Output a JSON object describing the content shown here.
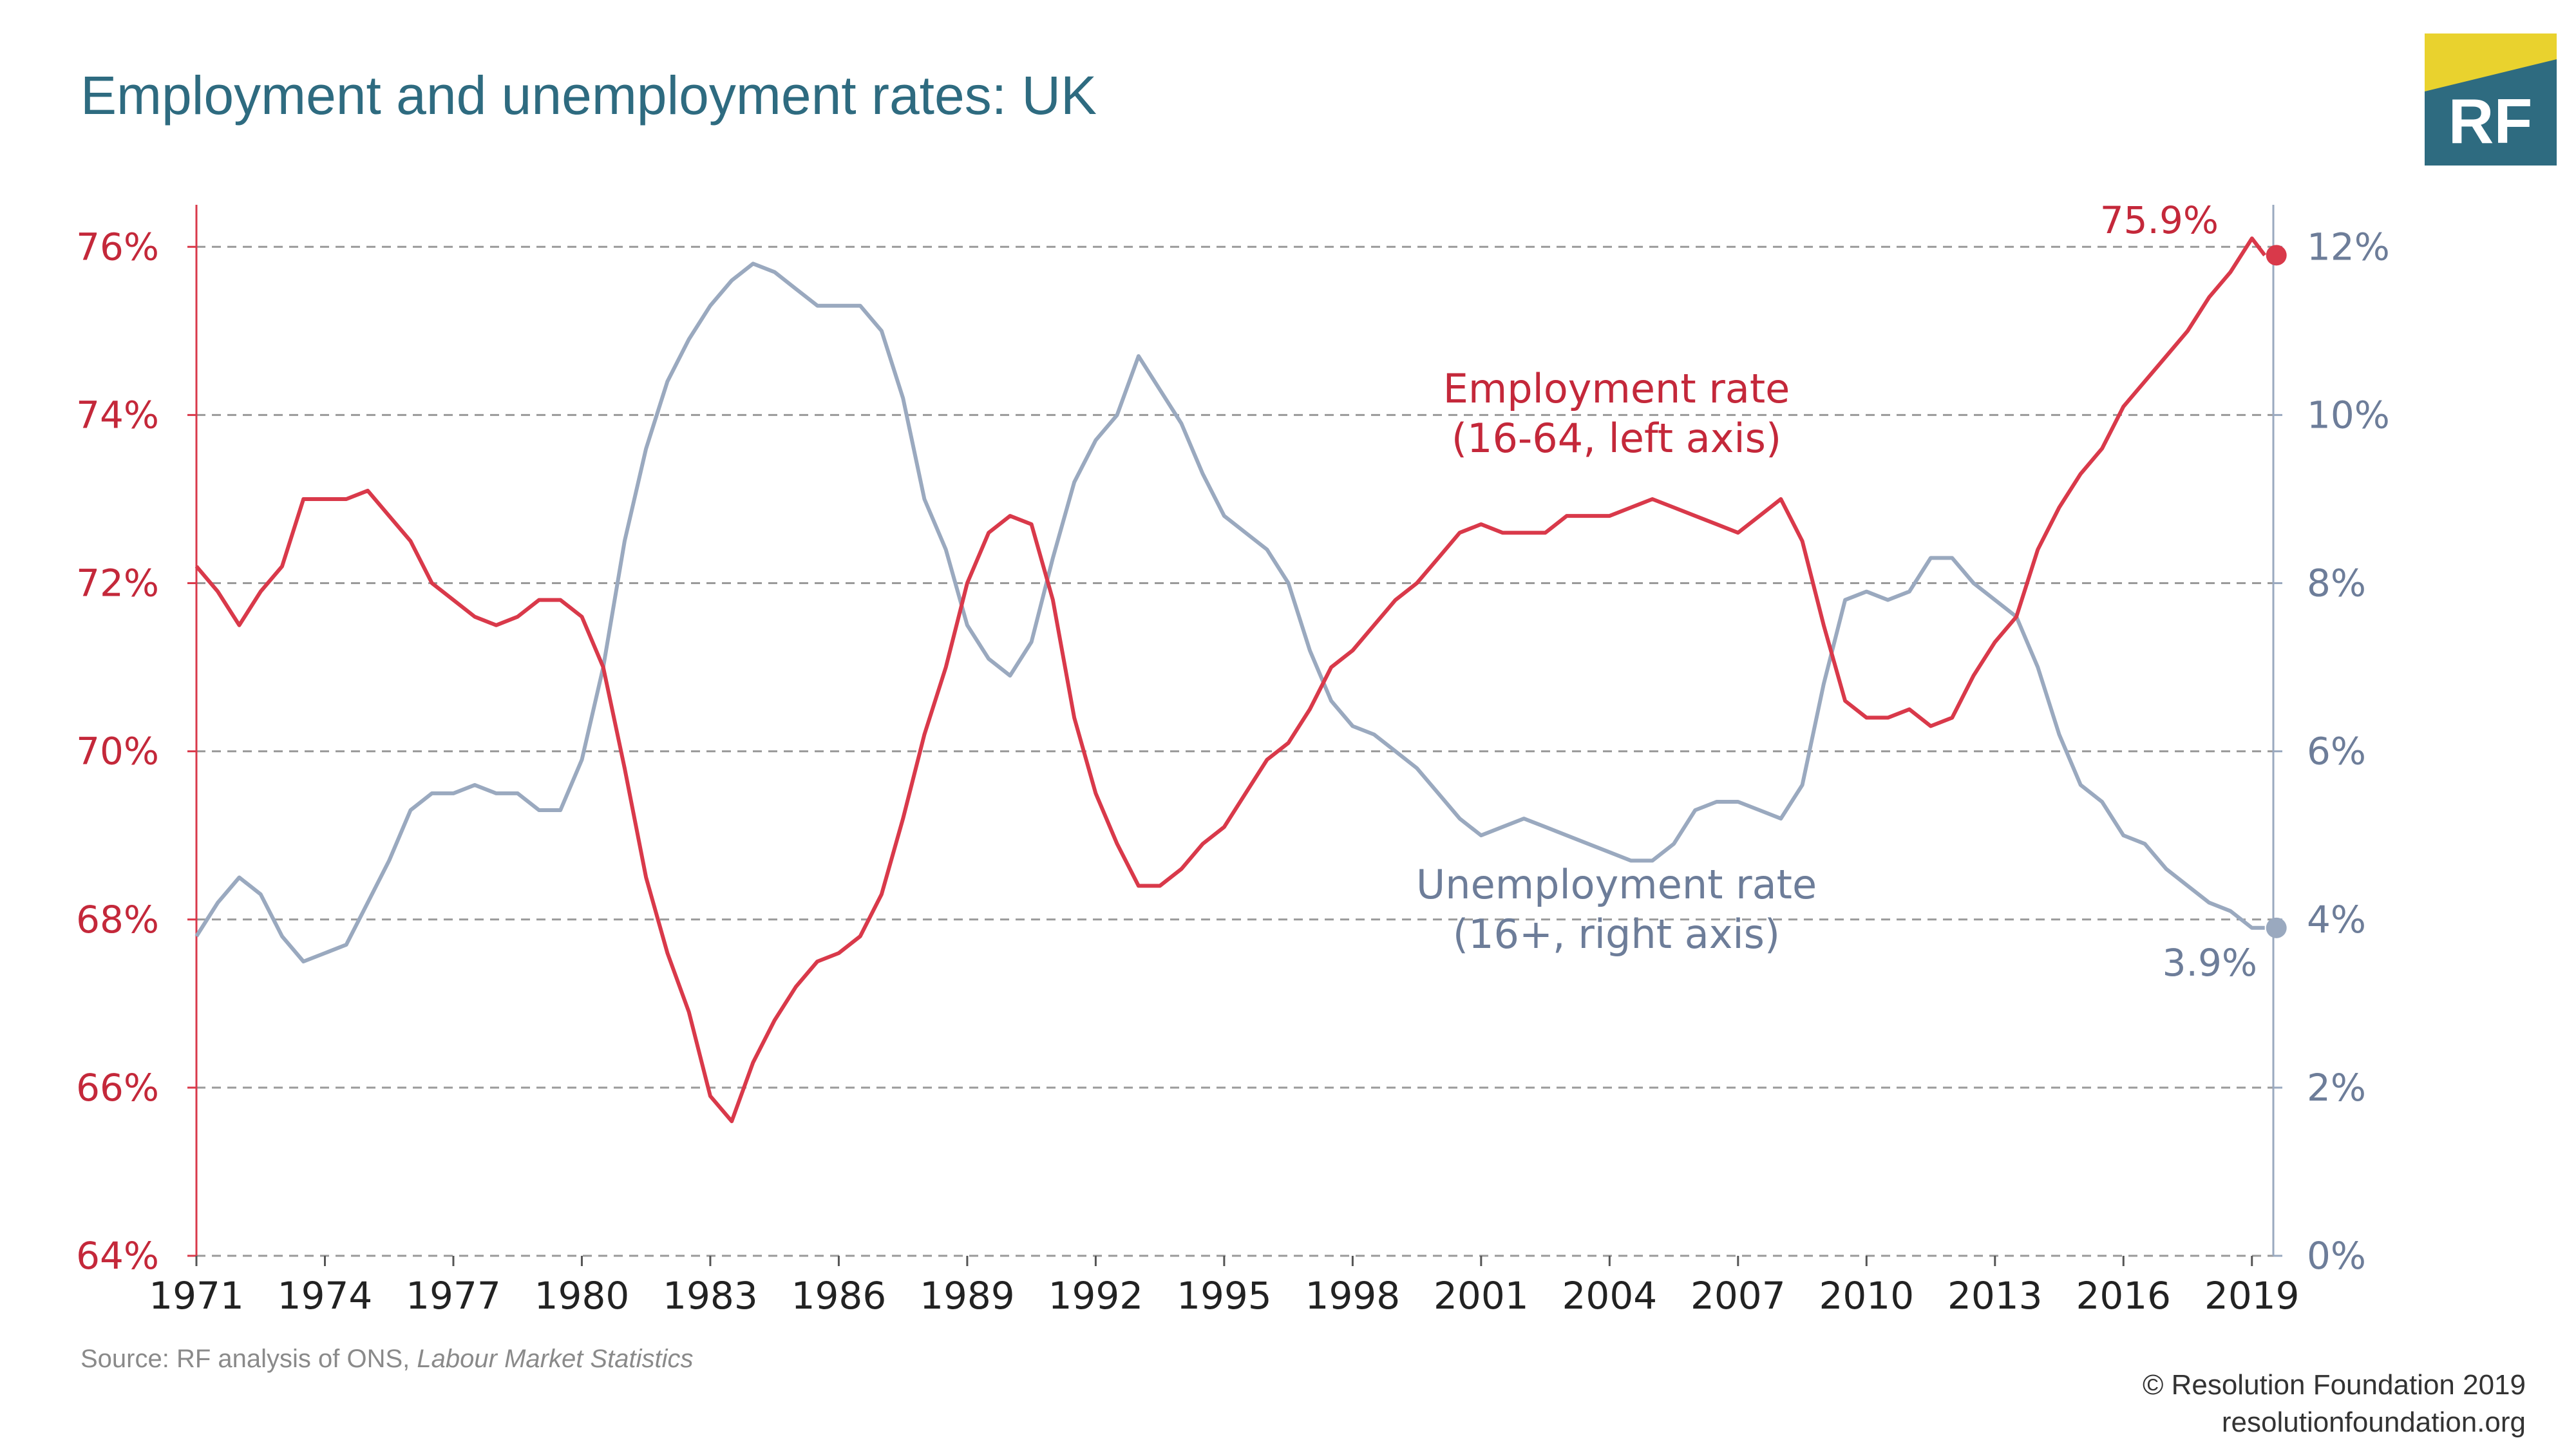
{
  "title": "Employment and unemployment rates: UK",
  "logo": {
    "text": "RF",
    "colors": {
      "teal": "#2e6b80",
      "yellow": "#e9d22e"
    }
  },
  "source": {
    "prefix": "Source: RF analysis of ONS, ",
    "dataset": "Labour Market Statistics"
  },
  "credit": {
    "line1": "© Resolution Foundation 2019",
    "line2": "resolutionfoundation.org"
  },
  "colors": {
    "employment": "#d9394a",
    "unemployment": "#9aa9bf",
    "left_axis_text": "#c4283a",
    "right_axis_text": "#6d7d99",
    "grid": "#9a9a9a",
    "axis_text": "#222222"
  },
  "chart_data": {
    "type": "line",
    "x_range": [
      1971,
      2019.5
    ],
    "x_ticks": [
      "1971",
      "1974",
      "1977",
      "1980",
      "1983",
      "1986",
      "1989",
      "1992",
      "1995",
      "1998",
      "2001",
      "2004",
      "2007",
      "2010",
      "2013",
      "2016",
      "2019"
    ],
    "left_axis": {
      "range": [
        64,
        76.5
      ],
      "ticks": [
        "64%",
        "66%",
        "68%",
        "70%",
        "72%",
        "74%",
        "76%"
      ],
      "tick_values": [
        64,
        66,
        68,
        70,
        72,
        74,
        76
      ]
    },
    "right_axis": {
      "range": [
        0,
        12.5
      ],
      "ticks": [
        "0%",
        "2%",
        "4%",
        "6%",
        "8%",
        "10%",
        "12%"
      ],
      "tick_values": [
        0,
        2,
        4,
        6,
        8,
        10,
        12
      ]
    },
    "grid": true,
    "series": [
      {
        "label_line1": "Employment rate",
        "label_line2": "(16-64, left axis)",
        "axis": "left",
        "end_label": "75.9%",
        "end_value": 75.9,
        "points": [
          [
            1971,
            72.2
          ],
          [
            1971.5,
            71.9
          ],
          [
            1972,
            71.5
          ],
          [
            1972.5,
            71.9
          ],
          [
            1973,
            72.2
          ],
          [
            1973.5,
            73.0
          ],
          [
            1974,
            73.0
          ],
          [
            1974.5,
            73.0
          ],
          [
            1975,
            73.1
          ],
          [
            1975.5,
            72.8
          ],
          [
            1976,
            72.5
          ],
          [
            1976.5,
            72.0
          ],
          [
            1977,
            71.8
          ],
          [
            1977.5,
            71.6
          ],
          [
            1978,
            71.5
          ],
          [
            1978.5,
            71.6
          ],
          [
            1979,
            71.8
          ],
          [
            1979.5,
            71.8
          ],
          [
            1980,
            71.6
          ],
          [
            1980.5,
            71.0
          ],
          [
            1981,
            69.8
          ],
          [
            1981.5,
            68.5
          ],
          [
            1982,
            67.6
          ],
          [
            1982.5,
            66.9
          ],
          [
            1983,
            65.9
          ],
          [
            1983.5,
            65.6
          ],
          [
            1984,
            66.3
          ],
          [
            1984.5,
            66.8
          ],
          [
            1985,
            67.2
          ],
          [
            1985.5,
            67.5
          ],
          [
            1986,
            67.6
          ],
          [
            1986.5,
            67.8
          ],
          [
            1987,
            68.3
          ],
          [
            1987.5,
            69.2
          ],
          [
            1988,
            70.2
          ],
          [
            1988.5,
            71.0
          ],
          [
            1989,
            72.0
          ],
          [
            1989.5,
            72.6
          ],
          [
            1990,
            72.8
          ],
          [
            1990.5,
            72.7
          ],
          [
            1991,
            71.8
          ],
          [
            1991.5,
            70.4
          ],
          [
            1992,
            69.5
          ],
          [
            1992.5,
            68.9
          ],
          [
            1993,
            68.4
          ],
          [
            1993.5,
            68.4
          ],
          [
            1994,
            68.6
          ],
          [
            1994.5,
            68.9
          ],
          [
            1995,
            69.1
          ],
          [
            1995.5,
            69.5
          ],
          [
            1996,
            69.9
          ],
          [
            1996.5,
            70.1
          ],
          [
            1997,
            70.5
          ],
          [
            1997.5,
            71.0
          ],
          [
            1998,
            71.2
          ],
          [
            1998.5,
            71.5
          ],
          [
            1999,
            71.8
          ],
          [
            1999.5,
            72.0
          ],
          [
            2000,
            72.3
          ],
          [
            2000.5,
            72.6
          ],
          [
            2001,
            72.7
          ],
          [
            2001.5,
            72.6
          ],
          [
            2002,
            72.6
          ],
          [
            2002.5,
            72.6
          ],
          [
            2003,
            72.8
          ],
          [
            2003.5,
            72.8
          ],
          [
            2004,
            72.8
          ],
          [
            2004.5,
            72.9
          ],
          [
            2005,
            73.0
          ],
          [
            2005.5,
            72.9
          ],
          [
            2006,
            72.8
          ],
          [
            2006.5,
            72.7
          ],
          [
            2007,
            72.6
          ],
          [
            2007.5,
            72.8
          ],
          [
            2008,
            73.0
          ],
          [
            2008.5,
            72.5
          ],
          [
            2009,
            71.5
          ],
          [
            2009.5,
            70.6
          ],
          [
            2010,
            70.4
          ],
          [
            2010.5,
            70.4
          ],
          [
            2011,
            70.5
          ],
          [
            2011.5,
            70.3
          ],
          [
            2012,
            70.4
          ],
          [
            2012.5,
            70.9
          ],
          [
            2013,
            71.3
          ],
          [
            2013.5,
            71.6
          ],
          [
            2014,
            72.4
          ],
          [
            2014.5,
            72.9
          ],
          [
            2015,
            73.3
          ],
          [
            2015.5,
            73.6
          ],
          [
            2016,
            74.1
          ],
          [
            2016.5,
            74.4
          ],
          [
            2017,
            74.7
          ],
          [
            2017.5,
            75.0
          ],
          [
            2018,
            75.4
          ],
          [
            2018.5,
            75.7
          ],
          [
            2019,
            76.1
          ],
          [
            2019.3,
            75.9
          ]
        ]
      },
      {
        "label_line1": "Unemployment rate",
        "label_line2": "(16+, right axis)",
        "axis": "right",
        "end_label": "3.9%",
        "end_value": 3.9,
        "points": [
          [
            1971,
            3.8
          ],
          [
            1971.5,
            4.2
          ],
          [
            1972,
            4.5
          ],
          [
            1972.5,
            4.3
          ],
          [
            1973,
            3.8
          ],
          [
            1973.5,
            3.5
          ],
          [
            1974,
            3.6
          ],
          [
            1974.5,
            3.7
          ],
          [
            1975,
            4.2
          ],
          [
            1975.5,
            4.7
          ],
          [
            1976,
            5.3
          ],
          [
            1976.5,
            5.5
          ],
          [
            1977,
            5.5
          ],
          [
            1977.5,
            5.6
          ],
          [
            1978,
            5.5
          ],
          [
            1978.5,
            5.5
          ],
          [
            1979,
            5.3
          ],
          [
            1979.5,
            5.3
          ],
          [
            1980,
            5.9
          ],
          [
            1980.5,
            7.0
          ],
          [
            1981,
            8.5
          ],
          [
            1981.5,
            9.6
          ],
          [
            1982,
            10.4
          ],
          [
            1982.5,
            10.9
          ],
          [
            1983,
            11.3
          ],
          [
            1983.5,
            11.6
          ],
          [
            1984,
            11.8
          ],
          [
            1984.5,
            11.7
          ],
          [
            1985,
            11.5
          ],
          [
            1985.5,
            11.3
          ],
          [
            1986,
            11.3
          ],
          [
            1986.5,
            11.3
          ],
          [
            1987,
            11.0
          ],
          [
            1987.5,
            10.2
          ],
          [
            1988,
            9.0
          ],
          [
            1988.5,
            8.4
          ],
          [
            1989,
            7.5
          ],
          [
            1989.5,
            7.1
          ],
          [
            1990,
            6.9
          ],
          [
            1990.5,
            7.3
          ],
          [
            1991,
            8.3
          ],
          [
            1991.5,
            9.2
          ],
          [
            1992,
            9.7
          ],
          [
            1992.5,
            10.0
          ],
          [
            1993,
            10.7
          ],
          [
            1993.5,
            10.3
          ],
          [
            1994,
            9.9
          ],
          [
            1994.5,
            9.3
          ],
          [
            1995,
            8.8
          ],
          [
            1995.5,
            8.6
          ],
          [
            1996,
            8.4
          ],
          [
            1996.5,
            8.0
          ],
          [
            1997,
            7.2
          ],
          [
            1997.5,
            6.6
          ],
          [
            1998,
            6.3
          ],
          [
            1998.5,
            6.2
          ],
          [
            1999,
            6.0
          ],
          [
            1999.5,
            5.8
          ],
          [
            2000,
            5.5
          ],
          [
            2000.5,
            5.2
          ],
          [
            2001,
            5.0
          ],
          [
            2001.5,
            5.1
          ],
          [
            2002,
            5.2
          ],
          [
            2002.5,
            5.1
          ],
          [
            2003,
            5.0
          ],
          [
            2003.5,
            4.9
          ],
          [
            2004,
            4.8
          ],
          [
            2004.5,
            4.7
          ],
          [
            2005,
            4.7
          ],
          [
            2005.5,
            4.9
          ],
          [
            2006,
            5.3
          ],
          [
            2006.5,
            5.4
          ],
          [
            2007,
            5.4
          ],
          [
            2007.5,
            5.3
          ],
          [
            2008,
            5.2
          ],
          [
            2008.5,
            5.6
          ],
          [
            2009,
            6.8
          ],
          [
            2009.5,
            7.8
          ],
          [
            2010,
            7.9
          ],
          [
            2010.5,
            7.8
          ],
          [
            2011,
            7.9
          ],
          [
            2011.5,
            8.3
          ],
          [
            2012,
            8.3
          ],
          [
            2012.5,
            8.0
          ],
          [
            2013,
            7.8
          ],
          [
            2013.5,
            7.6
          ],
          [
            2014,
            7.0
          ],
          [
            2014.5,
            6.2
          ],
          [
            2015,
            5.6
          ],
          [
            2015.5,
            5.4
          ],
          [
            2016,
            5.0
          ],
          [
            2016.5,
            4.9
          ],
          [
            2017,
            4.6
          ],
          [
            2017.5,
            4.4
          ],
          [
            2018,
            4.2
          ],
          [
            2018.5,
            4.1
          ],
          [
            2019,
            3.9
          ],
          [
            2019.3,
            3.9
          ]
        ]
      }
    ]
  }
}
